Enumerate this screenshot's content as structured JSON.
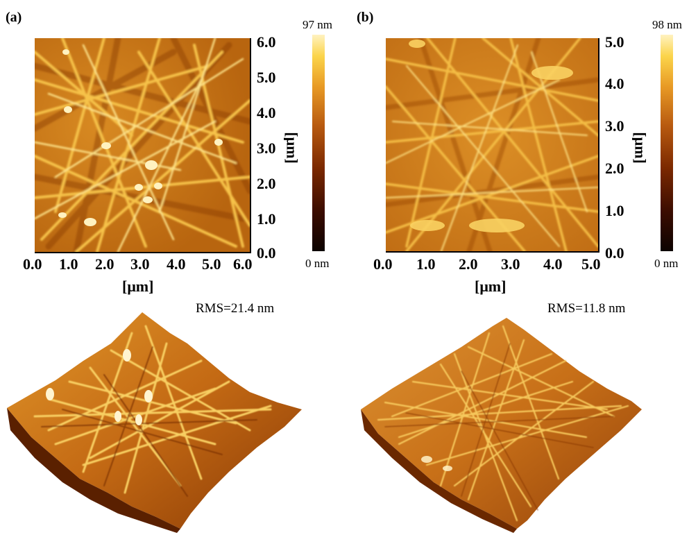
{
  "panels": [
    {
      "id": "a",
      "label": "(a)",
      "colorbar": {
        "max_label": "97 nm",
        "min_label": "0 nm"
      },
      "x_ticks": [
        "0.0",
        "1.0",
        "2.0",
        "3.0",
        "4.0",
        "5.0",
        "6.0"
      ],
      "y_ticks": [
        "0.0",
        "1.0",
        "2.0",
        "3.0",
        "4.0",
        "5.0",
        "6.0"
      ],
      "x_unit": "[μm]",
      "y_unit": "[μm]",
      "rms": "RMS=21.4 nm"
    },
    {
      "id": "b",
      "label": "(b)",
      "colorbar": {
        "max_label": "98 nm",
        "min_label": "0 nm"
      },
      "x_ticks": [
        "0.0",
        "1.0",
        "2.0",
        "3.0",
        "4.0",
        "5.0"
      ],
      "y_ticks": [
        "0.0",
        "1.0",
        "2.0",
        "3.0",
        "4.0",
        "5.0"
      ],
      "x_unit": "[μm]",
      "y_unit": "[μm]",
      "rms": "RMS=11.8 nm"
    }
  ],
  "colors": {
    "height_low": "#0c0300",
    "height_mid": "#b85a10",
    "height_high": "#fff2c0"
  }
}
